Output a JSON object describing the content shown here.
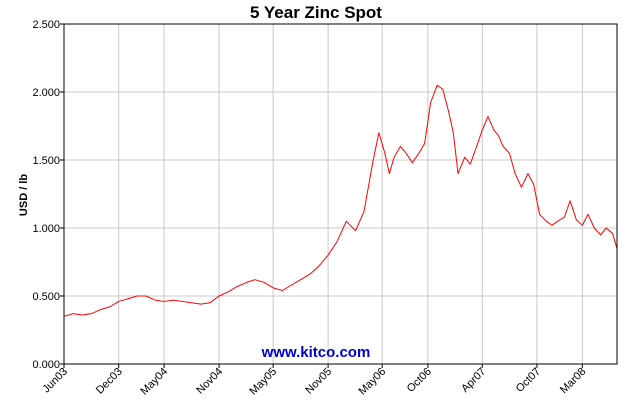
{
  "colors": {
    "series": "#ff0000",
    "watermark": "#0000cc",
    "grid": "#c8c8c8",
    "axis": "#000000"
  },
  "watermark": "www.kitco.com",
  "chart_data": {
    "type": "line",
    "title": "5 Year Zinc Spot",
    "xlabel": "",
    "ylabel": "USD / lb",
    "ylim": [
      0,
      2.5
    ],
    "yticks": [
      "0.000",
      "0.500",
      "1.000",
      "1.500",
      "2.000",
      "2.500"
    ],
    "xlim": [
      "2003-06-01",
      "2008-06-25"
    ],
    "xticks": [
      {
        "label": "Jun03",
        "date": "2003-06-01"
      },
      {
        "label": "Dec03",
        "date": "2003-12-01"
      },
      {
        "label": "May04",
        "date": "2004-05-01"
      },
      {
        "label": "Nov04",
        "date": "2004-11-01"
      },
      {
        "label": "May05",
        "date": "2005-05-01"
      },
      {
        "label": "Nov05",
        "date": "2005-11-01"
      },
      {
        "label": "May06",
        "date": "2006-05-01"
      },
      {
        "label": "Oct06",
        "date": "2006-10-01"
      },
      {
        "label": "Apr07",
        "date": "2007-04-01"
      },
      {
        "label": "Oct07",
        "date": "2007-10-01"
      },
      {
        "label": "Mar08",
        "date": "2008-03-01"
      }
    ],
    "grid": true,
    "series": [
      {
        "x": [
          "2003-06-01",
          "2003-07-01",
          "2003-08-01",
          "2003-09-01",
          "2003-10-01",
          "2003-11-01",
          "2003-12-01",
          "2004-01-01",
          "2004-02-01",
          "2004-03-01",
          "2004-04-01",
          "2004-05-01",
          "2004-06-01",
          "2004-07-01",
          "2004-08-01",
          "2004-09-01",
          "2004-10-01",
          "2004-11-01",
          "2004-12-01",
          "2005-01-01",
          "2005-02-01",
          "2005-03-01",
          "2005-04-01",
          "2005-05-01",
          "2005-06-01",
          "2005-07-01",
          "2005-08-01",
          "2005-09-01",
          "2005-10-01",
          "2005-11-01",
          "2005-12-01",
          "2006-01-01",
          "2006-02-01",
          "2006-03-01",
          "2006-04-01",
          "2006-04-20",
          "2006-05-10",
          "2006-05-25",
          "2006-06-10",
          "2006-07-01",
          "2006-07-20",
          "2006-08-10",
          "2006-09-01",
          "2006-09-20",
          "2006-10-10",
          "2006-11-01",
          "2006-11-20",
          "2006-12-10",
          "2006-12-25",
          "2007-01-10",
          "2007-02-01",
          "2007-02-20",
          "2007-03-10",
          "2007-04-01",
          "2007-04-20",
          "2007-05-10",
          "2007-05-25",
          "2007-06-10",
          "2007-07-01",
          "2007-07-20",
          "2007-08-10",
          "2007-09-01",
          "2007-09-20",
          "2007-10-10",
          "2007-11-01",
          "2007-11-20",
          "2007-12-10",
          "2008-01-01",
          "2008-01-20",
          "2008-02-10",
          "2008-03-01",
          "2008-03-20",
          "2008-04-10",
          "2008-05-01",
          "2008-05-20",
          "2008-06-10",
          "2008-06-25"
        ],
        "y": [
          0.35,
          0.37,
          0.36,
          0.37,
          0.4,
          0.42,
          0.46,
          0.48,
          0.5,
          0.5,
          0.47,
          0.46,
          0.47,
          0.46,
          0.45,
          0.44,
          0.45,
          0.5,
          0.53,
          0.57,
          0.6,
          0.62,
          0.6,
          0.56,
          0.54,
          0.58,
          0.62,
          0.66,
          0.72,
          0.8,
          0.9,
          1.05,
          0.98,
          1.12,
          1.5,
          1.7,
          1.55,
          1.4,
          1.52,
          1.6,
          1.55,
          1.48,
          1.55,
          1.62,
          1.92,
          2.05,
          2.02,
          1.85,
          1.7,
          1.4,
          1.52,
          1.47,
          1.58,
          1.72,
          1.82,
          1.72,
          1.68,
          1.6,
          1.55,
          1.4,
          1.3,
          1.4,
          1.32,
          1.1,
          1.05,
          1.02,
          1.05,
          1.08,
          1.2,
          1.06,
          1.02,
          1.1,
          1.0,
          0.95,
          1.0,
          0.96,
          0.85
        ]
      }
    ]
  }
}
